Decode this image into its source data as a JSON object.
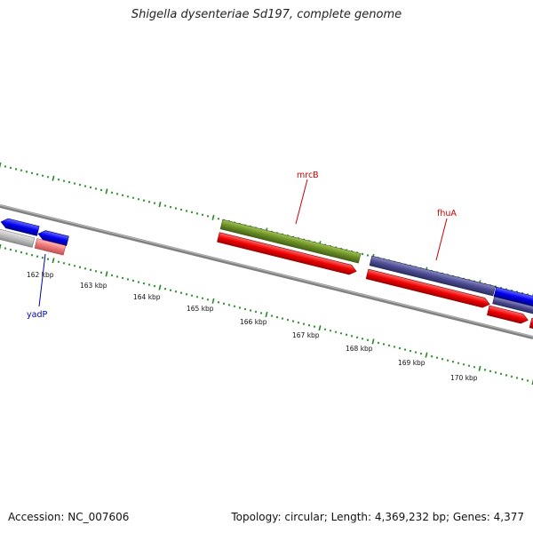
{
  "title": "Shigella dysenteriae Sd197, complete genome",
  "footer": {
    "accession": "Accession: NC_007606",
    "meta": "Topology: circular; Length: 4,369,232 bp; Genes: 4,377"
  },
  "scale_ticks": [
    "162 kbp",
    "163 kbp",
    "164 kbp",
    "165 kbp",
    "166 kbp",
    "167 kbp",
    "168 kbp",
    "169 kbp",
    "170 kbp"
  ],
  "gene_labels": [
    {
      "name": "mrcB",
      "color": "#cc0000"
    },
    {
      "name": "fhuA",
      "color": "#cc0000"
    },
    {
      "name": "yadP",
      "color": "#0000aa"
    }
  ],
  "feature_colors": {
    "cds_blue": "#0000ee",
    "cds_red": "#ee0000",
    "cds_pink": "#ee7777",
    "cds_grey": "#bbbbbb",
    "cds_green": "#6b8e23",
    "cds_purple": "#4b4b8f",
    "backbone": "#808080",
    "tick_green": "#228b22"
  }
}
